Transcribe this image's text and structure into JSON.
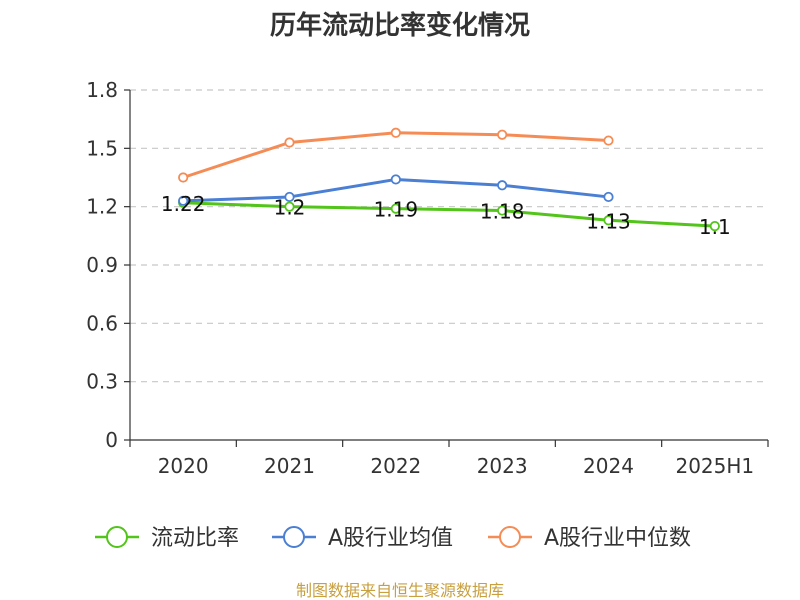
{
  "chart_data": {
    "type": "line",
    "title": "历年流动比率变化情况",
    "categories": [
      "2020",
      "2021",
      "2022",
      "2023",
      "2024",
      "2025H1"
    ],
    "ylim": [
      0,
      1.8
    ],
    "yticks": [
      "0",
      "0.3",
      "0.6",
      "0.9",
      "1.2",
      "1.5",
      "1.8"
    ],
    "grid": true,
    "legend_position": "bottom",
    "series": [
      {
        "name": "流动比率",
        "color": "#52c41a",
        "values": [
          1.22,
          1.2,
          1.19,
          1.18,
          1.13,
          1.1
        ],
        "labels": [
          "1.22",
          "1.2",
          "1.19",
          "1.18",
          "1.13",
          "1.1"
        ]
      },
      {
        "name": "A股行业均值",
        "color": "#4a7fd4",
        "values": [
          1.23,
          1.25,
          1.34,
          1.31,
          1.25,
          null
        ]
      },
      {
        "name": "A股行业中位数",
        "color": "#f58c55",
        "values": [
          1.35,
          1.53,
          1.58,
          1.57,
          1.54,
          null
        ]
      }
    ]
  },
  "footer": {
    "source": "制图数据来自恒生聚源数据库"
  }
}
